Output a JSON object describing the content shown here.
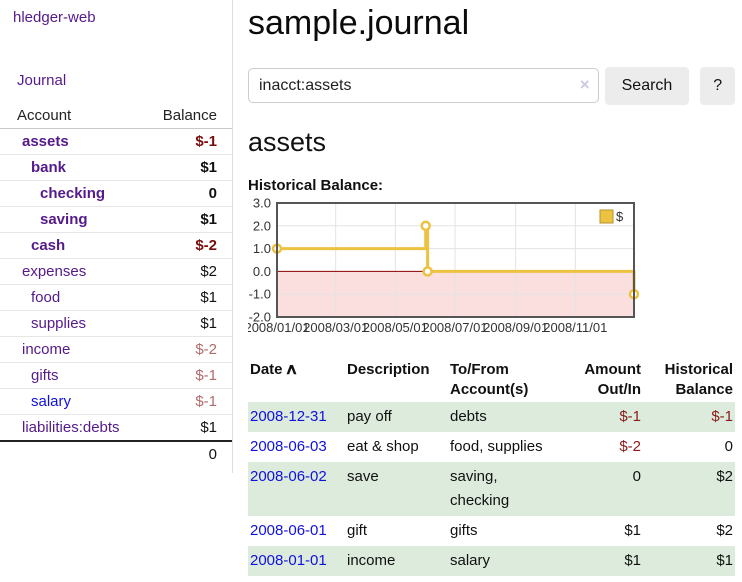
{
  "app": {
    "title": "hledger-web",
    "nav_journal": "Journal"
  },
  "sidebar": {
    "header": {
      "account": "Account",
      "balance": "Balance"
    },
    "accounts": [
      {
        "name": "assets",
        "balance": "$-1",
        "depth": 1,
        "bold": true,
        "negative": true,
        "link_color": "purple"
      },
      {
        "name": "bank",
        "balance": "$1",
        "depth": 2,
        "bold": true,
        "negative": false,
        "link_color": "purple"
      },
      {
        "name": "checking",
        "balance": "0",
        "depth": 3,
        "bold": true,
        "negative": false,
        "link_color": "purple"
      },
      {
        "name": "saving",
        "balance": "$1",
        "depth": 3,
        "bold": true,
        "negative": false,
        "link_color": "purple"
      },
      {
        "name": "cash",
        "balance": "$-2",
        "depth": 2,
        "bold": true,
        "negative": true,
        "link_color": "purple"
      },
      {
        "name": "expenses",
        "balance": "$2",
        "depth": 1,
        "bold": false,
        "negative": false,
        "link_color": "purple"
      },
      {
        "name": "food",
        "balance": "$1",
        "depth": 2,
        "bold": false,
        "negative": false,
        "link_color": "purple"
      },
      {
        "name": "supplies",
        "balance": "$1",
        "depth": 2,
        "bold": false,
        "negative": false,
        "link_color": "purple"
      },
      {
        "name": "income",
        "balance": "$-2",
        "depth": 1,
        "bold": false,
        "negative": true,
        "link_color": "purple"
      },
      {
        "name": "gifts",
        "balance": "$-1",
        "depth": 2,
        "bold": false,
        "negative": true,
        "link_color": "purple"
      },
      {
        "name": "salary",
        "balance": "$-1",
        "depth": 2,
        "bold": false,
        "negative": true,
        "link_color": "blue"
      },
      {
        "name": "liabilities:debts",
        "balance": "$1",
        "depth": 1,
        "bold": false,
        "negative": false,
        "link_color": "purple"
      }
    ],
    "total": "0"
  },
  "main": {
    "title": "sample.journal",
    "search": {
      "value": "inacct:assets",
      "clear_icon": "×",
      "button_label": "Search",
      "help_label": "?"
    },
    "account_heading": "assets",
    "chart_label": "Historical Balance:"
  },
  "chart_data": {
    "type": "line",
    "style": "step",
    "title": "Historical Balance of assets",
    "series": [
      {
        "name": "$",
        "points": [
          [
            "2008-01-01",
            1
          ],
          [
            "2008-06-01",
            2
          ],
          [
            "2008-06-03",
            0
          ],
          [
            "2008-12-31",
            -1
          ]
        ]
      }
    ],
    "x_ticks": [
      "2008/01/01",
      "2008/03/01",
      "2008/05/01",
      "2008/07/01",
      "2008/09/01",
      "2008/11/01"
    ],
    "y_ticks": [
      "3.0",
      "2.0",
      "1.0",
      "0.0",
      "-1.0",
      "-2.0"
    ],
    "xlim": [
      "2008-01-01",
      "2008-12-31"
    ],
    "ylim": [
      -2,
      3
    ],
    "grid": true,
    "legend": {
      "label": "$",
      "position": "top-right"
    },
    "negative_region_shaded": true
  },
  "register": {
    "sort_indicator": "∧",
    "headers": [
      "Date",
      "Description",
      "To/From Account(s)",
      "Amount Out/In",
      "Historical Balance"
    ],
    "rows": [
      {
        "date": "2008-12-31",
        "description": "pay off",
        "accounts": "debts",
        "amount": "$-1",
        "balance": "$-1"
      },
      {
        "date": "2008-06-03",
        "description": "eat & shop",
        "accounts": "food, supplies",
        "amount": "$-2",
        "balance": "0"
      },
      {
        "date": "2008-06-02",
        "description": "save",
        "accounts": "saving, checking",
        "amount": "0",
        "balance": "$2"
      },
      {
        "date": "2008-06-01",
        "description": "gift",
        "accounts": "gifts",
        "amount": "$1",
        "balance": "$2"
      },
      {
        "date": "2008-01-01",
        "description": "income",
        "accounts": "salary",
        "amount": "$1",
        "balance": "$1"
      }
    ]
  },
  "colors": {
    "accent_purple": "#551a8b",
    "link_blue": "#1111dd",
    "negative_bold": "#7b0c0c",
    "negative_muted": "#b16b6b",
    "negative": "#8b1a1a",
    "row_green": "#dcebdc",
    "series_yellow": "#edc240",
    "series_yellow_dark": "#b8922a",
    "negative_region": "#fbdfdf",
    "zero_line": "#8b0000",
    "plot_border": "#555555"
  }
}
